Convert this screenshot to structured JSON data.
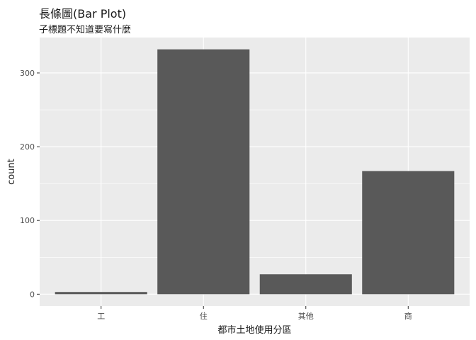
{
  "chart_data": {
    "type": "bar",
    "title": "長條圖(Bar Plot)",
    "subtitle": "子標題不知道要寫什麼",
    "xlabel": "都市土地使用分區",
    "ylabel": "count",
    "categories": [
      "工",
      "住",
      "其他",
      "商"
    ],
    "values": [
      3,
      332,
      27,
      167
    ],
    "ylim": [
      -16,
      348
    ],
    "yticks": [
      0,
      100,
      200,
      300
    ],
    "grid": true,
    "colors": {
      "panel": "#ebebeb",
      "grid_major": "#ffffff",
      "bar": "#595959"
    }
  }
}
